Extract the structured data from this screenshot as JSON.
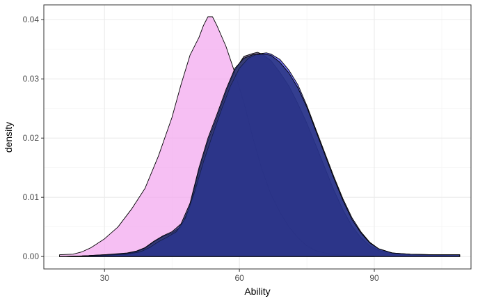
{
  "chart_data": {
    "type": "area",
    "title": "",
    "xlabel": "Ability",
    "ylabel": "density",
    "xlim": [
      16.5,
      111.5
    ],
    "ylim": [
      -0.0021,
      0.0425
    ],
    "x_ticks": [
      {
        "value": 30,
        "label": "30"
      },
      {
        "value": 60,
        "label": "60"
      },
      {
        "value": 90,
        "label": "90"
      }
    ],
    "y_ticks": [
      {
        "value": 0.0,
        "label": "0.00"
      },
      {
        "value": 0.01,
        "label": "0.01"
      },
      {
        "value": 0.02,
        "label": "0.02"
      },
      {
        "value": 0.03,
        "label": "0.03"
      },
      {
        "value": 0.04,
        "label": "0.04"
      }
    ],
    "grid": true,
    "legend": "none",
    "series": [
      {
        "fill": "#f3a6ee",
        "opacity": 0.72,
        "points": [
          [
            20,
            0.0003
          ],
          [
            23,
            0.0004
          ],
          [
            25,
            0.0008
          ],
          [
            27,
            0.0015
          ],
          [
            30,
            0.003
          ],
          [
            33,
            0.005
          ],
          [
            36,
            0.008
          ],
          [
            39,
            0.0115
          ],
          [
            42,
            0.017
          ],
          [
            45,
            0.0235
          ],
          [
            47,
            0.029
          ],
          [
            49,
            0.034
          ],
          [
            51,
            0.037
          ],
          [
            52,
            0.039
          ],
          [
            53,
            0.0405
          ],
          [
            54,
            0.0405
          ],
          [
            55,
            0.039
          ],
          [
            57,
            0.0355
          ],
          [
            59,
            0.031
          ],
          [
            61,
            0.026
          ],
          [
            63,
            0.02
          ],
          [
            65,
            0.0147
          ],
          [
            67,
            0.0105
          ],
          [
            69,
            0.0075
          ],
          [
            71,
            0.005
          ],
          [
            73,
            0.0032
          ],
          [
            75,
            0.0018
          ],
          [
            77,
            0.001
          ],
          [
            80,
            0.0004
          ],
          [
            85,
            0.0001
          ],
          [
            90,
            0.0001
          ]
        ]
      },
      {
        "fill": "#5a4a78",
        "opacity": 0.8,
        "points": [
          [
            20,
            0.0
          ],
          [
            25,
            0.0001
          ],
          [
            30,
            0.0003
          ],
          [
            35,
            0.0005
          ],
          [
            37,
            0.0008
          ],
          [
            39,
            0.0014
          ],
          [
            41,
            0.0025
          ],
          [
            43,
            0.0034
          ],
          [
            45,
            0.004
          ],
          [
            47,
            0.005
          ],
          [
            49,
            0.0085
          ],
          [
            51,
            0.0145
          ],
          [
            53,
            0.0195
          ],
          [
            55,
            0.0235
          ],
          [
            57,
            0.0278
          ],
          [
            59,
            0.0315
          ],
          [
            61,
            0.0338
          ],
          [
            63,
            0.0343
          ],
          [
            64,
            0.0345
          ],
          [
            65,
            0.0342
          ],
          [
            67,
            0.0331
          ],
          [
            69,
            0.0311
          ],
          [
            71,
            0.0288
          ],
          [
            73,
            0.0258
          ],
          [
            75,
            0.0225
          ],
          [
            77,
            0.0188
          ],
          [
            79,
            0.015
          ],
          [
            81,
            0.0112
          ],
          [
            83,
            0.0079
          ],
          [
            85,
            0.0052
          ],
          [
            87,
            0.0032
          ],
          [
            89,
            0.0018
          ],
          [
            91,
            0.001
          ],
          [
            95,
            0.0005
          ],
          [
            100,
            0.0003
          ],
          [
            105,
            0.0002
          ],
          [
            109,
            0.0001
          ]
        ]
      },
      {
        "fill": "#4e4ef0",
        "opacity": 0.78,
        "points": [
          [
            20,
            0.0
          ],
          [
            25,
            0.0001
          ],
          [
            30,
            0.0002
          ],
          [
            35,
            0.0004
          ],
          [
            38,
            0.0008
          ],
          [
            40,
            0.0015
          ],
          [
            42,
            0.0025
          ],
          [
            44,
            0.0033
          ],
          [
            46,
            0.0042
          ],
          [
            48,
            0.0065
          ],
          [
            50,
            0.0108
          ],
          [
            52,
            0.016
          ],
          [
            54,
            0.0205
          ],
          [
            56,
            0.0248
          ],
          [
            58,
            0.0288
          ],
          [
            60,
            0.0318
          ],
          [
            62,
            0.0335
          ],
          [
            64,
            0.0342
          ],
          [
            66,
            0.0344
          ],
          [
            67,
            0.0342
          ],
          [
            69,
            0.0333
          ],
          [
            71,
            0.0315
          ],
          [
            73,
            0.029
          ],
          [
            75,
            0.0255
          ],
          [
            77,
            0.0215
          ],
          [
            79,
            0.0175
          ],
          [
            81,
            0.0135
          ],
          [
            83,
            0.0098
          ],
          [
            85,
            0.0066
          ],
          [
            87,
            0.0042
          ],
          [
            89,
            0.0024
          ],
          [
            91,
            0.0013
          ],
          [
            94,
            0.0006
          ],
          [
            98,
            0.0004
          ],
          [
            103,
            0.0003
          ],
          [
            109,
            0.0003
          ]
        ]
      },
      {
        "fill": "#1c2a6a",
        "opacity": 0.72,
        "points": [
          [
            20,
            0.0
          ],
          [
            25,
            0.0001
          ],
          [
            30,
            0.0003
          ],
          [
            35,
            0.0006
          ],
          [
            37,
            0.0009
          ],
          [
            39,
            0.0015
          ],
          [
            41,
            0.0026
          ],
          [
            43,
            0.0035
          ],
          [
            45,
            0.0042
          ],
          [
            47,
            0.0055
          ],
          [
            49,
            0.009
          ],
          [
            51,
            0.015
          ],
          [
            53,
            0.02
          ],
          [
            55,
            0.024
          ],
          [
            57,
            0.0282
          ],
          [
            59,
            0.0318
          ],
          [
            61,
            0.0335
          ],
          [
            63,
            0.0341
          ],
          [
            65,
            0.0342
          ],
          [
            67,
            0.034
          ],
          [
            69,
            0.0328
          ],
          [
            71,
            0.031
          ],
          [
            73,
            0.0285
          ],
          [
            75,
            0.0252
          ],
          [
            77,
            0.0212
          ],
          [
            79,
            0.0172
          ],
          [
            81,
            0.0132
          ],
          [
            83,
            0.0095
          ],
          [
            85,
            0.0063
          ],
          [
            87,
            0.004
          ],
          [
            89,
            0.0023
          ],
          [
            91,
            0.0013
          ],
          [
            94,
            0.0006
          ],
          [
            98,
            0.0004
          ],
          [
            103,
            0.0003
          ],
          [
            109,
            0.0003
          ]
        ]
      }
    ]
  }
}
